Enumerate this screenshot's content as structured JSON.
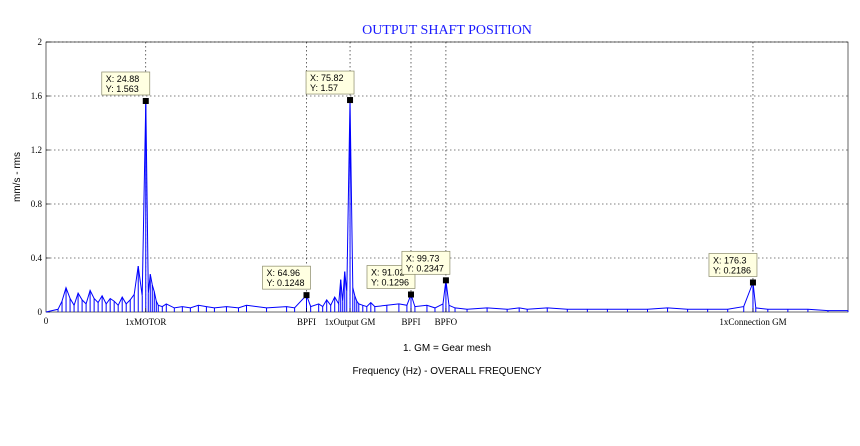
{
  "chart_data": {
    "type": "line",
    "title": "OUTPUT SHAFT POSITION",
    "xlabel": "Frequency (Hz) - OVERALL FREQUENCY",
    "ylabel": "mm/s - rms",
    "note": "1. GM = Gear mesh",
    "xlim": [
      0,
      200
    ],
    "ylim": [
      0,
      2
    ],
    "grid": true,
    "line_color": "#0000ff",
    "x_ticks": [
      {
        "value": 0,
        "label": "0"
      }
    ],
    "y_ticks": [
      {
        "value": 0,
        "label": "0"
      },
      {
        "value": 0.4,
        "label": "0.4"
      },
      {
        "value": 0.8,
        "label": "0.8"
      },
      {
        "value": 1.2,
        "label": "1.2"
      },
      {
        "value": 1.6,
        "label": "1.6"
      },
      {
        "value": 2,
        "label": "2"
      }
    ],
    "category_labels": [
      {
        "x": 24.88,
        "label": "1xMOTOR"
      },
      {
        "x": 64.96,
        "label": "BPFI"
      },
      {
        "x": 75.82,
        "label": "1xOutput GM"
      },
      {
        "x": 91.02,
        "label": "BPFI"
      },
      {
        "x": 99.73,
        "label": "BPFO"
      },
      {
        "x": 176.3,
        "label": "1xConnection GM"
      }
    ],
    "datatips": [
      {
        "x": 24.88,
        "y": 1.563,
        "x_text": "X: 24.88",
        "y_text": "Y: 1.563"
      },
      {
        "x": 75.82,
        "y": 1.57,
        "x_text": "X: 75.82",
        "y_text": "Y: 1.57"
      },
      {
        "x": 64.96,
        "y": 0.1248,
        "x_text": "X: 64.96",
        "y_text": "Y: 0.1248"
      },
      {
        "x": 91.02,
        "y": 0.1296,
        "x_text": "X: 91.02",
        "y_text": "Y: 0.1296"
      },
      {
        "x": 99.73,
        "y": 0.2347,
        "x_text": "X: 99.73",
        "y_text": "Y: 0.2347"
      },
      {
        "x": 176.3,
        "y": 0.2186,
        "x_text": "X: 176.3",
        "y_text": "Y: 0.2186"
      }
    ],
    "series": [
      {
        "x": [
          0,
          3,
          4,
          5,
          6,
          7,
          8,
          9,
          10,
          11,
          12,
          13,
          14,
          15,
          16,
          17,
          18,
          19,
          20,
          21,
          22,
          23,
          24,
          24.88,
          25.5,
          26,
          26.5,
          27,
          27.5,
          28,
          29,
          30,
          32,
          34,
          36,
          38,
          40,
          42,
          45,
          48,
          50,
          55,
          60,
          62,
          64.96,
          66,
          68,
          69,
          70,
          71,
          72,
          73,
          73.5,
          74,
          74.5,
          75,
          75.82,
          76.5,
          77,
          77.5,
          78,
          79,
          80,
          81,
          82,
          85,
          88,
          90,
          91.02,
          92,
          95,
          97,
          99,
          99.73,
          100.5,
          102,
          105,
          110,
          115,
          118,
          120,
          125,
          130,
          135,
          140,
          145,
          150,
          155,
          160,
          165,
          170,
          174,
          176.3,
          177,
          180,
          185,
          190,
          195,
          200
        ],
        "y": [
          0,
          0.02,
          0.08,
          0.18,
          0.1,
          0.05,
          0.14,
          0.09,
          0.06,
          0.16,
          0.1,
          0.07,
          0.12,
          0.06,
          0.1,
          0.08,
          0.05,
          0.11,
          0.06,
          0.09,
          0.13,
          0.34,
          0.12,
          1.563,
          0.14,
          0.28,
          0.2,
          0.15,
          0.08,
          0.05,
          0.04,
          0.06,
          0.03,
          0.04,
          0.03,
          0.05,
          0.04,
          0.03,
          0.04,
          0.03,
          0.05,
          0.03,
          0.04,
          0.03,
          0.1248,
          0.04,
          0.06,
          0.04,
          0.09,
          0.05,
          0.11,
          0.06,
          0.24,
          0.08,
          0.3,
          0.15,
          1.57,
          0.18,
          0.12,
          0.08,
          0.06,
          0.05,
          0.04,
          0.07,
          0.04,
          0.05,
          0.06,
          0.05,
          0.1296,
          0.04,
          0.05,
          0.03,
          0.06,
          0.2347,
          0.05,
          0.03,
          0.02,
          0.03,
          0.02,
          0.03,
          0.02,
          0.03,
          0.02,
          0.02,
          0.02,
          0.02,
          0.02,
          0.03,
          0.02,
          0.02,
          0.02,
          0.04,
          0.2186,
          0.03,
          0.02,
          0.02,
          0.02,
          0.01,
          0.01
        ]
      }
    ]
  }
}
